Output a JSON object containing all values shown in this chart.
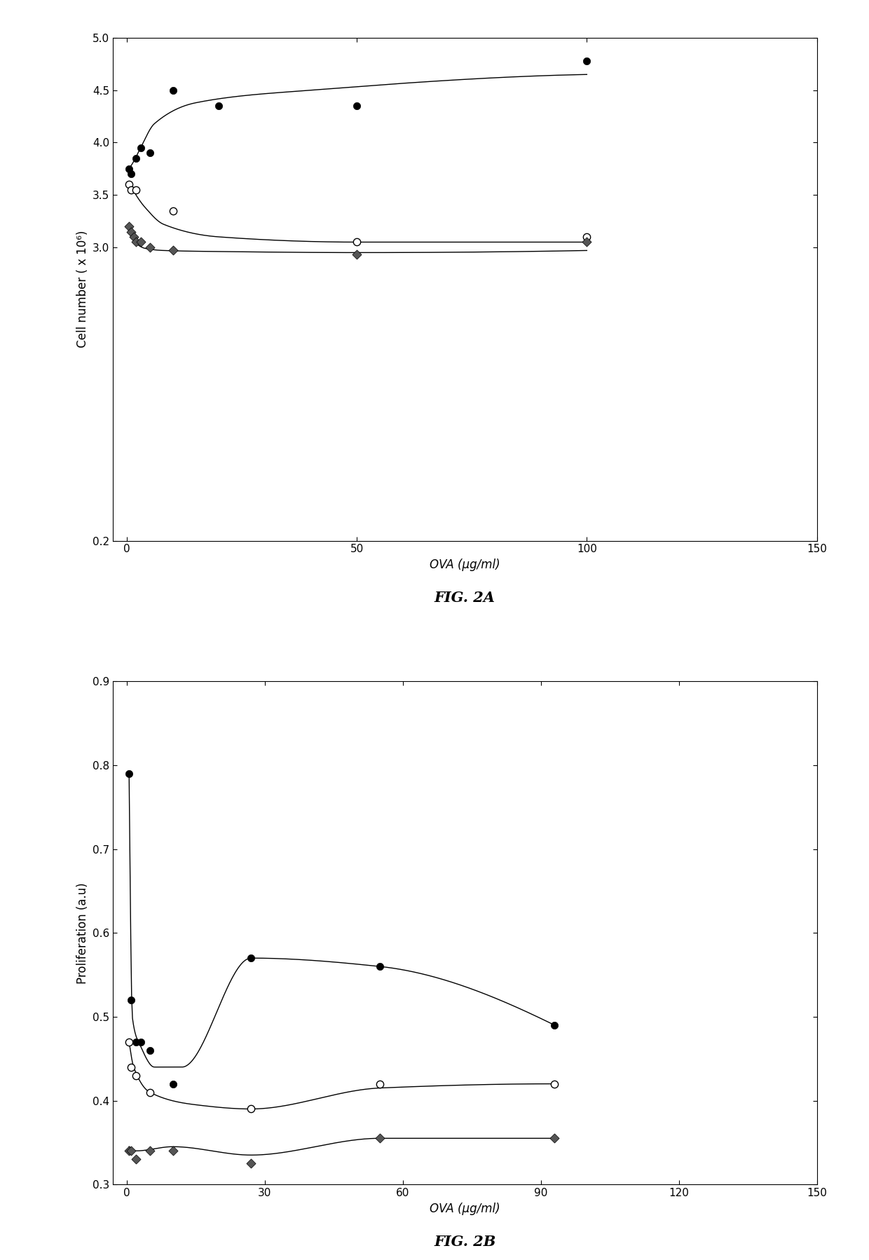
{
  "fig2a": {
    "title": "FIG. 2A",
    "xlabel": "OVA (μg/ml)",
    "ylabel": "Cell number ( x 10⁶)",
    "xlim": [
      -3,
      150
    ],
    "ylim": [
      0.2,
      5.0
    ],
    "yticks": [
      0.2,
      3.0,
      3.5,
      4.0,
      4.5,
      5.0
    ],
    "xticks": [
      0,
      50,
      100,
      150
    ],
    "series": {
      "filled_circle": {
        "x": [
          0.5,
          1.0,
          2.0,
          3.0,
          5.0,
          10.0,
          20.0,
          50.0,
          100.0
        ],
        "y": [
          3.75,
          3.7,
          3.85,
          3.95,
          3.9,
          4.5,
          4.35,
          4.35,
          4.78
        ],
        "marker": "o",
        "facecolor": "black",
        "edgecolor": "black",
        "size": 55
      },
      "open_circle": {
        "x": [
          0.5,
          1.0,
          2.0,
          10.0,
          50.0,
          100.0
        ],
        "y": [
          3.6,
          3.55,
          3.55,
          3.35,
          3.05,
          3.1
        ],
        "marker": "o",
        "facecolor": "white",
        "edgecolor": "black",
        "size": 55
      },
      "filled_diamond": {
        "x": [
          0.5,
          1.0,
          1.5,
          2.0,
          3.0,
          5.0,
          10.0,
          50.0,
          100.0
        ],
        "y": [
          3.2,
          3.15,
          3.1,
          3.05,
          3.05,
          3.0,
          2.97,
          2.93,
          3.05
        ],
        "marker": "D",
        "facecolor": "#555555",
        "edgecolor": "black",
        "size": 45
      }
    }
  },
  "fig2b": {
    "title": "FIG. 2B",
    "xlabel": "OVA (μg/ml)",
    "ylabel": "Proliferation (a.u)",
    "xlim": [
      -3,
      150
    ],
    "ylim": [
      0.3,
      0.9
    ],
    "yticks": [
      0.3,
      0.4,
      0.5,
      0.6,
      0.7,
      0.8,
      0.9
    ],
    "xticks": [
      0,
      30,
      60,
      90,
      120,
      150
    ],
    "series": {
      "filled_circle": {
        "x": [
          0.5,
          1.0,
          2.0,
          3.0,
          5.0,
          10.0,
          27.0,
          55.0,
          93.0
        ],
        "y": [
          0.79,
          0.52,
          0.47,
          0.47,
          0.46,
          0.42,
          0.57,
          0.56,
          0.49
        ],
        "marker": "o",
        "facecolor": "black",
        "edgecolor": "black",
        "size": 55
      },
      "open_circle": {
        "x": [
          0.5,
          1.0,
          2.0,
          5.0,
          27.0,
          55.0,
          93.0
        ],
        "y": [
          0.47,
          0.44,
          0.43,
          0.41,
          0.39,
          0.42,
          0.42
        ],
        "marker": "o",
        "facecolor": "white",
        "edgecolor": "black",
        "size": 55
      },
      "filled_diamond": {
        "x": [
          0.5,
          1.0,
          2.0,
          5.0,
          10.0,
          27.0,
          55.0,
          93.0
        ],
        "y": [
          0.34,
          0.34,
          0.33,
          0.34,
          0.34,
          0.325,
          0.355,
          0.355
        ],
        "marker": "D",
        "facecolor": "#555555",
        "edgecolor": "black",
        "size": 45
      }
    }
  }
}
